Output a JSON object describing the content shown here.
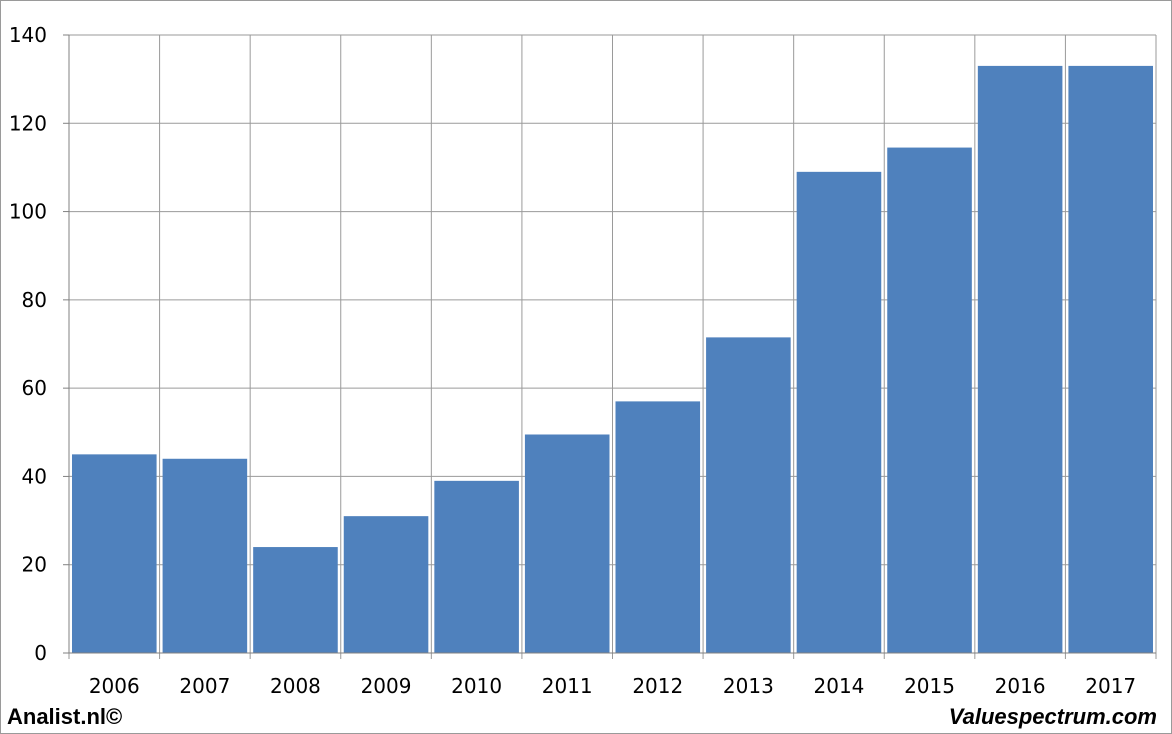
{
  "footer": {
    "left_text": "Analist.nl©",
    "right_text": "Valuespectrum.com"
  },
  "colors": {
    "bar": "#4f81bd",
    "grid": "#9a9a9a",
    "axis": "#808080"
  },
  "chart_data": {
    "type": "bar",
    "title": "",
    "xlabel": "",
    "ylabel": "",
    "categories": [
      "2006",
      "2007",
      "2008",
      "2009",
      "2010",
      "2011",
      "2012",
      "2013",
      "2014",
      "2015",
      "2016",
      "2017"
    ],
    "values": [
      45,
      44,
      24,
      31,
      39,
      49.5,
      57,
      71.5,
      109,
      114.5,
      133,
      133
    ],
    "ylim": [
      0,
      140
    ],
    "yticks": [
      0,
      20,
      40,
      60,
      80,
      100,
      120,
      140
    ],
    "grid": true,
    "legend": "none"
  }
}
